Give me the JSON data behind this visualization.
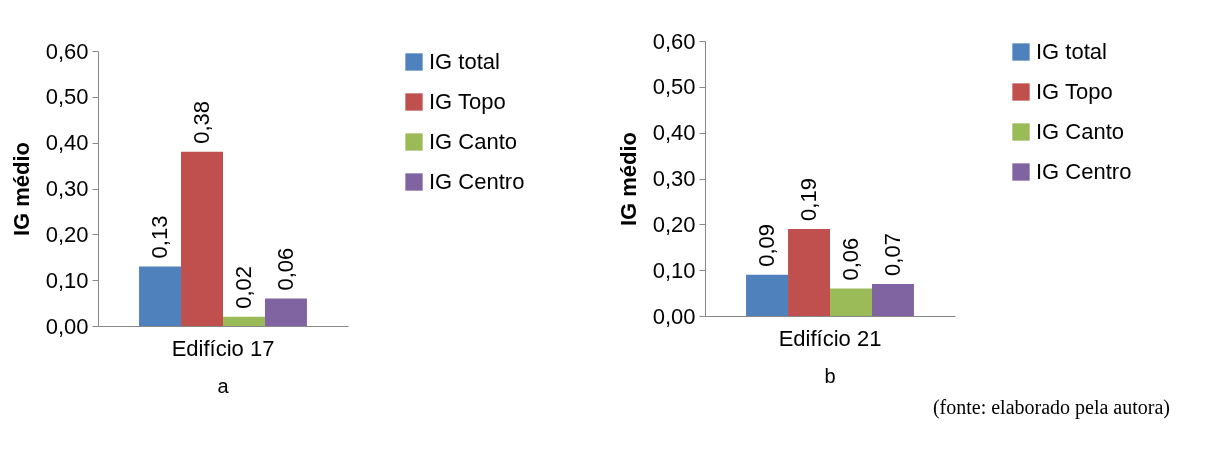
{
  "chart_data": [
    {
      "type": "bar",
      "categories": [
        "Edifício 17"
      ],
      "ylabel": "IG médio",
      "ylim": [
        0,
        0.6
      ],
      "yticks": [
        {
          "value": 0,
          "label": "0,00"
        },
        {
          "value": 0.1,
          "label": "0,10"
        },
        {
          "value": 0.2,
          "label": "0,20"
        },
        {
          "value": 0.3,
          "label": "0,30"
        },
        {
          "value": 0.4,
          "label": "0,40"
        },
        {
          "value": 0.5,
          "label": "0,50"
        },
        {
          "value": 0.6,
          "label": "0,60"
        }
      ],
      "series": [
        {
          "name": "IG total",
          "color": "#4f81bd",
          "values": [
            0.13
          ],
          "value_labels": [
            "0,13"
          ]
        },
        {
          "name": "IG Topo",
          "color": "#c0504d",
          "values": [
            0.38
          ],
          "value_labels": [
            "0,38"
          ]
        },
        {
          "name": "IG Canto",
          "color": "#9bbb59",
          "values": [
            0.02
          ],
          "value_labels": [
            "0,02"
          ]
        },
        {
          "name": "IG Centro",
          "color": "#8064a2",
          "values": [
            0.06
          ],
          "value_labels": [
            "0,06"
          ]
        }
      ],
      "legend": "right",
      "annotations": [
        "a"
      ]
    },
    {
      "type": "bar",
      "categories": [
        "Edifício 21"
      ],
      "ylabel": "IG médio",
      "ylim": [
        0,
        0.6
      ],
      "yticks": [
        {
          "value": 0,
          "label": "0,00"
        },
        {
          "value": 0.1,
          "label": "0,10"
        },
        {
          "value": 0.2,
          "label": "0,20"
        },
        {
          "value": 0.3,
          "label": "0,30"
        },
        {
          "value": 0.4,
          "label": "0,40"
        },
        {
          "value": 0.5,
          "label": "0,50"
        },
        {
          "value": 0.6,
          "label": "0,60"
        }
      ],
      "series": [
        {
          "name": "IG total",
          "color": "#4f81bd",
          "values": [
            0.09
          ],
          "value_labels": [
            "0,09"
          ]
        },
        {
          "name": "IG Topo",
          "color": "#c0504d",
          "values": [
            0.19
          ],
          "value_labels": [
            "0,19"
          ]
        },
        {
          "name": "IG Canto",
          "color": "#9bbb59",
          "values": [
            0.06
          ],
          "value_labels": [
            "0,06"
          ]
        },
        {
          "name": "IG Centro",
          "color": "#8064a2",
          "values": [
            0.07
          ],
          "value_labels": [
            "0,07"
          ]
        }
      ],
      "legend": "right",
      "annotations": [
        "b",
        "(fonte: elaborado pela autora)"
      ]
    }
  ]
}
